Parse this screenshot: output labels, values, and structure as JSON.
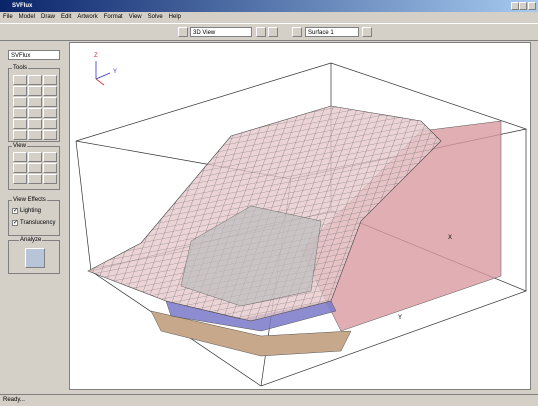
{
  "window": {
    "title": "SVFlux"
  },
  "menu": [
    "File",
    "Model",
    "Draw",
    "Edit",
    "Artwork",
    "Format",
    "View",
    "Solve",
    "Help"
  ],
  "toolbar": {
    "view": "3D View",
    "surface": "Surface 1"
  },
  "sidebar": {
    "model_select": "SVFlux",
    "tools": "Tools",
    "view": "View",
    "view_effects": {
      "title": "View Effects",
      "options": [
        {
          "label": "Lighting",
          "checked": true
        },
        {
          "label": "Translucency",
          "checked": true
        }
      ]
    },
    "analyze": "Analyze"
  },
  "viewport": {
    "triad": {
      "z": "Z",
      "y": "Y"
    },
    "axis_x": "X",
    "axis_y": "Y"
  },
  "status": "Ready..."
}
